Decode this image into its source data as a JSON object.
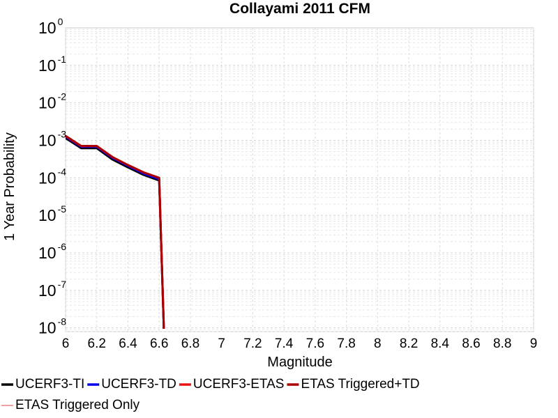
{
  "chart_data": {
    "type": "line",
    "title": "Collayami 2011 CFM",
    "xlabel": "Magnitude",
    "ylabel": "1 Year Probability",
    "xlim": [
      6,
      9
    ],
    "ylim_log10": [
      -8.1,
      0
    ],
    "y_scale": "log",
    "grid": true,
    "legend_placement": "bottom",
    "x_ticks": [
      "6",
      "6.2",
      "6.4",
      "6.6",
      "6.8",
      "7",
      "7.2",
      "7.4",
      "7.6",
      "7.8",
      "8",
      "8.2",
      "8.4",
      "8.6",
      "8.8",
      "9"
    ],
    "y_ticks": [
      {
        "base": "10",
        "exp": "0",
        "log10": 0
      },
      {
        "base": "10",
        "exp": "-1",
        "log10": -1
      },
      {
        "base": "10",
        "exp": "-2",
        "log10": -2
      },
      {
        "base": "10",
        "exp": "-3",
        "log10": -3
      },
      {
        "base": "10",
        "exp": "-4",
        "log10": -4
      },
      {
        "base": "10",
        "exp": "-5",
        "log10": -5
      },
      {
        "base": "10",
        "exp": "-6",
        "log10": -6
      },
      {
        "base": "10",
        "exp": "-7",
        "log10": -7
      },
      {
        "base": "10",
        "exp": "-8",
        "log10": -8
      }
    ],
    "series": [
      {
        "name": "UCERF3-TI",
        "color": "#000000",
        "x": [
          6.0,
          6.1,
          6.2,
          6.3,
          6.4,
          6.5,
          6.6,
          6.63
        ],
        "y": [
          0.00115,
          0.00062,
          0.00062,
          0.00031,
          0.00019,
          0.00012,
          8.5e-05,
          9.5e-09
        ]
      },
      {
        "name": "UCERF3-TD",
        "color": "#0000ee",
        "x": [
          6.0,
          6.1,
          6.2,
          6.3,
          6.4,
          6.5,
          6.6,
          6.63
        ],
        "y": [
          0.00125,
          0.00067,
          0.00067,
          0.00034,
          0.00021,
          0.00013,
          9.2e-05,
          9.5e-09
        ]
      },
      {
        "name": "UCERF3-ETAS",
        "color": "#ee1111",
        "x": [
          6.0,
          6.1,
          6.2,
          6.3,
          6.4,
          6.5,
          6.6,
          6.63
        ],
        "y": [
          0.0013,
          0.0007,
          0.0007,
          0.00036,
          0.00022,
          0.00014,
          0.0001,
          9.5e-09
        ]
      },
      {
        "name": "ETAS Triggered+TD",
        "color": "#aa0000",
        "x": [
          6.0,
          6.1,
          6.2,
          6.3,
          6.4,
          6.5,
          6.6,
          6.63
        ],
        "y": [
          0.00132,
          0.00071,
          0.00071,
          0.00036,
          0.00022,
          0.00014,
          0.0001,
          9.5e-09
        ]
      },
      {
        "name": "ETAS Triggered Only",
        "color": "#f08080",
        "x": [],
        "y": []
      }
    ]
  }
}
